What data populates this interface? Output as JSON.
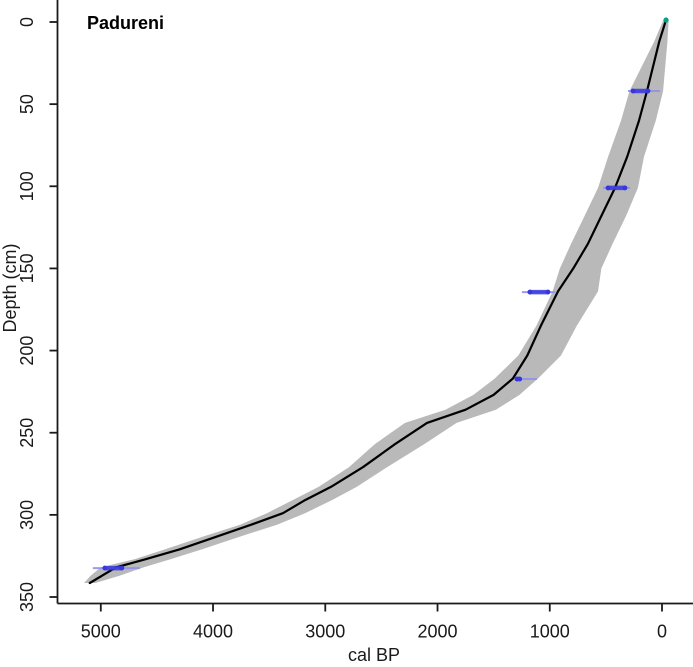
{
  "chart_data": {
    "type": "line",
    "title": "Padureni",
    "xlabel": "cal BP",
    "ylabel": "Depth (cm)",
    "x_axis": {
      "label": "cal BP",
      "ticks": [
        5000,
        4000,
        3000,
        2000,
        1000,
        0
      ],
      "range": [
        5390,
        -280
      ],
      "reversed": true,
      "grid": false
    },
    "y_axis": {
      "label": "Depth (cm)",
      "ticks": [
        0,
        50,
        100,
        150,
        200,
        250,
        300,
        350
      ],
      "range": [
        -13,
        358
      ],
      "reversed": true,
      "grid": false
    },
    "model_line": {
      "name": "age-depth model best fit",
      "points": [
        [
          -36,
          -1.2
        ],
        [
          25,
          12
        ],
        [
          134,
          42
        ],
        [
          205,
          60
        ],
        [
          310,
          82
        ],
        [
          419,
          101
        ],
        [
          540,
          118
        ],
        [
          660,
          135
        ],
        [
          790,
          150
        ],
        [
          927,
          164
        ],
        [
          1080,
          185
        ],
        [
          1200,
          203
        ],
        [
          1328,
          217
        ],
        [
          1500,
          227
        ],
        [
          1750,
          236
        ],
        [
          2094,
          244
        ],
        [
          2380,
          257
        ],
        [
          2665,
          271
        ],
        [
          2950,
          283
        ],
        [
          3180,
          291
        ],
        [
          3378,
          299
        ],
        [
          3660,
          306
        ],
        [
          3957,
          313
        ],
        [
          4300,
          321
        ],
        [
          4600,
          327
        ],
        [
          4866,
          332
        ],
        [
          5098,
          341.5
        ]
      ]
    },
    "confidence_envelope": {
      "name": "confidence envelope",
      "young_edge": [
        [
          -60,
          -1.2
        ],
        [
          -48,
          12
        ],
        [
          -10,
          42
        ],
        [
          55,
          60
        ],
        [
          160,
          82
        ],
        [
          215,
          101
        ],
        [
          320,
          118
        ],
        [
          440,
          135
        ],
        [
          540,
          150
        ],
        [
          570,
          164
        ],
        [
          760,
          185
        ],
        [
          900,
          203
        ],
        [
          1105,
          217
        ],
        [
          1270,
          227
        ],
        [
          1480,
          236
        ],
        [
          1830,
          244
        ],
        [
          2120,
          257
        ],
        [
          2450,
          271
        ],
        [
          2720,
          283
        ],
        [
          2940,
          291
        ],
        [
          3180,
          299
        ],
        [
          3430,
          306
        ],
        [
          3750,
          313
        ],
        [
          4100,
          321
        ],
        [
          4380,
          327
        ],
        [
          4620,
          332
        ],
        [
          4830,
          337
        ],
        [
          5050,
          341.5
        ]
      ],
      "old_edge": [
        [
          -12,
          -1.2
        ],
        [
          70,
          12
        ],
        [
          290,
          42
        ],
        [
          365,
          60
        ],
        [
          480,
          82
        ],
        [
          570,
          101
        ],
        [
          690,
          118
        ],
        [
          810,
          135
        ],
        [
          910,
          150
        ],
        [
          975,
          164
        ],
        [
          1120,
          185
        ],
        [
          1280,
          203
        ],
        [
          1490,
          217
        ],
        [
          1680,
          227
        ],
        [
          1930,
          236
        ],
        [
          2290,
          244
        ],
        [
          2560,
          257
        ],
        [
          2790,
          271
        ],
        [
          3060,
          283
        ],
        [
          3290,
          291
        ],
        [
          3520,
          299
        ],
        [
          3760,
          306
        ],
        [
          4080,
          313
        ],
        [
          4430,
          321
        ],
        [
          4700,
          327
        ],
        [
          5000,
          332
        ],
        [
          5090,
          337
        ],
        [
          5150,
          341.5
        ]
      ]
    },
    "dated_samples": [
      {
        "depth": 42.0,
        "cal_bp_range": [
          303,
          18
        ],
        "dense_range": [
          258,
          125
        ]
      },
      {
        "depth": 101.0,
        "cal_bp_range": [
          526,
          285
        ],
        "dense_range": [
          481,
          330
        ]
      },
      {
        "depth": 164.4,
        "cal_bp_range": [
          1248,
          954
        ],
        "dense_range": [
          1177,
          1016
        ]
      },
      {
        "depth": 217.3,
        "cal_bp_range": [
          1292,
          1114
        ],
        "dense_range": [
          1292,
          1268
        ]
      },
      {
        "depth": 332.4,
        "cal_bp_range": [
          5071,
          4652
        ],
        "dense_range": [
          4964,
          4813
        ]
      }
    ],
    "surface_marker": {
      "cal_bp": -36,
      "depth": -1.2
    },
    "colors": {
      "envelope": "#b9b9b9",
      "model_line": "#000000",
      "date_bar": "#9090f0",
      "date_dense": "#3737dd",
      "surface_marker": "#00a383",
      "axis": "#1a1a1a"
    }
  }
}
